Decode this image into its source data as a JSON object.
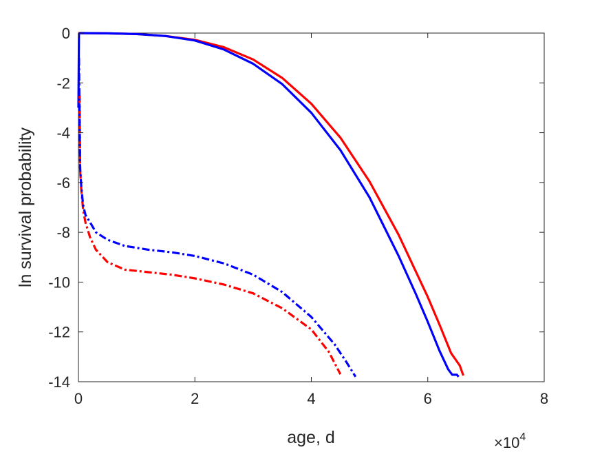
{
  "chart_data": {
    "type": "line",
    "xlabel": "age, d",
    "ylabel": "ln survival probability",
    "x_multiplier": {
      "base": "×10",
      "exponent": "4",
      "factor": 10000
    },
    "xlim": [
      0,
      80000
    ],
    "ylim": [
      -14,
      0
    ],
    "x_ticks": [
      0,
      20000,
      40000,
      60000,
      80000
    ],
    "x_tick_labels": [
      "0",
      "2",
      "4",
      "6",
      "8"
    ],
    "y_ticks": [
      0,
      -2,
      -4,
      -6,
      -8,
      -10,
      -12,
      -14
    ],
    "y_tick_labels": [
      "0",
      "-2",
      "-4",
      "-6",
      "-8",
      "-10",
      "-12",
      "-14"
    ],
    "grid": false,
    "box": true,
    "series": [
      {
        "color": "#ff0000",
        "style": "solid",
        "points": [
          [
            0,
            0
          ],
          [
            5000,
            -0.01
          ],
          [
            10000,
            -0.04
          ],
          [
            15000,
            -0.12
          ],
          [
            20000,
            -0.27
          ],
          [
            25000,
            -0.57
          ],
          [
            30000,
            -1.06
          ],
          [
            35000,
            -1.8
          ],
          [
            40000,
            -2.84
          ],
          [
            45000,
            -4.2
          ],
          [
            50000,
            -5.96
          ],
          [
            55000,
            -8.1
          ],
          [
            60000,
            -10.6
          ],
          [
            62000,
            -11.7
          ],
          [
            64000,
            -12.85
          ],
          [
            65500,
            -13.35
          ],
          [
            66100,
            -13.75
          ]
        ]
      },
      {
        "color": "#0000ff",
        "style": "solid",
        "points": [
          [
            0,
            -3.0
          ],
          [
            100,
            -0.02
          ],
          [
            300,
            0
          ],
          [
            5000,
            -0.01
          ],
          [
            10000,
            -0.04
          ],
          [
            15000,
            -0.12
          ],
          [
            20000,
            -0.3
          ],
          [
            25000,
            -0.66
          ],
          [
            30000,
            -1.23
          ],
          [
            35000,
            -2.05
          ],
          [
            40000,
            -3.2
          ],
          [
            45000,
            -4.7
          ],
          [
            50000,
            -6.6
          ],
          [
            55000,
            -8.95
          ],
          [
            58000,
            -10.5
          ],
          [
            60000,
            -11.6
          ],
          [
            62000,
            -12.75
          ],
          [
            63500,
            -13.5
          ],
          [
            64200,
            -13.72
          ],
          [
            65000,
            -13.72
          ],
          [
            65300,
            -13.8
          ]
        ]
      },
      {
        "color": "#ff0000",
        "style": "dashdot",
        "points": [
          [
            200,
            -2.5
          ],
          [
            300,
            -5.5
          ],
          [
            500,
            -6.3
          ],
          [
            800,
            -7.1
          ],
          [
            1200,
            -7.6
          ],
          [
            2000,
            -8.2
          ],
          [
            3000,
            -8.7
          ],
          [
            5000,
            -9.2
          ],
          [
            8000,
            -9.5
          ],
          [
            12000,
            -9.6
          ],
          [
            16000,
            -9.7
          ],
          [
            20000,
            -9.85
          ],
          [
            25000,
            -10.1
          ],
          [
            30000,
            -10.45
          ],
          [
            35000,
            -11.05
          ],
          [
            40000,
            -11.9
          ],
          [
            43000,
            -12.8
          ],
          [
            45000,
            -13.7
          ]
        ]
      },
      {
        "color": "#0000ff",
        "style": "dashdot",
        "points": [
          [
            100,
            -1.0
          ],
          [
            200,
            -3.5
          ],
          [
            300,
            -5.4
          ],
          [
            500,
            -6.2
          ],
          [
            800,
            -6.9
          ],
          [
            1200,
            -7.3
          ],
          [
            2000,
            -7.6
          ],
          [
            3000,
            -8.0
          ],
          [
            5000,
            -8.3
          ],
          [
            8000,
            -8.55
          ],
          [
            12000,
            -8.7
          ],
          [
            16000,
            -8.8
          ],
          [
            20000,
            -8.95
          ],
          [
            25000,
            -9.25
          ],
          [
            30000,
            -9.7
          ],
          [
            35000,
            -10.4
          ],
          [
            40000,
            -11.4
          ],
          [
            44000,
            -12.5
          ],
          [
            46000,
            -13.2
          ],
          [
            47600,
            -13.8
          ]
        ]
      }
    ]
  }
}
